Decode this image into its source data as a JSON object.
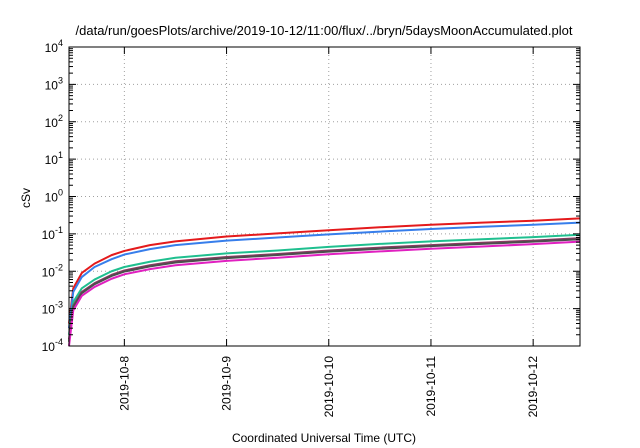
{
  "chart_data": {
    "type": "line",
    "title": "/data/run/goesPlots/archive/2019-10-12/11:00/flux/../bryn/5daysMoonAccumulated.plot",
    "xlabel": "Coordinated Universal Time (UTC)",
    "ylabel": "cSv",
    "yscale": "log",
    "ylim": [
      0.0001,
      10000
    ],
    "xlim": [
      "2019-10-07 11:00",
      "2019-10-12 11:00"
    ],
    "x_ticks": [
      "2019-10-8",
      "2019-10-9",
      "2019-10-10",
      "2019-10-11",
      "2019-10-12"
    ],
    "y_ticks": [
      {
        "base": "10",
        "exp": "-4"
      },
      {
        "base": "10",
        "exp": "-3"
      },
      {
        "base": "10",
        "exp": "-2"
      },
      {
        "base": "10",
        "exp": "-1"
      },
      {
        "base": "10",
        "exp": "0"
      },
      {
        "base": "10",
        "exp": "1"
      },
      {
        "base": "10",
        "exp": "2"
      },
      {
        "base": "10",
        "exp": "3"
      },
      {
        "base": "10",
        "exp": "4"
      }
    ],
    "grid": true,
    "x": [
      "2019-10-07 11:00",
      "2019-10-07 12:00",
      "2019-10-07 14:00",
      "2019-10-07 17:00",
      "2019-10-07 21:00",
      "2019-10-08 00:00",
      "2019-10-08 06:00",
      "2019-10-08 12:00",
      "2019-10-09 00:00",
      "2019-10-09 12:00",
      "2019-10-10 00:00",
      "2019-10-10 12:00",
      "2019-10-11 00:00",
      "2019-10-11 12:00",
      "2019-10-12 00:00",
      "2019-10-12 11:00"
    ],
    "series": [
      {
        "color": "#e41a1c",
        "values": [
          0.0004,
          0.0035,
          0.009,
          0.016,
          0.027,
          0.035,
          0.05,
          0.063,
          0.085,
          0.103,
          0.125,
          0.15,
          0.175,
          0.2,
          0.225,
          0.26
        ]
      },
      {
        "color": "#377eeb",
        "values": [
          0.0003,
          0.0028,
          0.007,
          0.013,
          0.021,
          0.028,
          0.039,
          0.05,
          0.066,
          0.08,
          0.097,
          0.115,
          0.135,
          0.155,
          0.175,
          0.2
        ]
      },
      {
        "color": "#1fbf8f",
        "values": [
          0.0002,
          0.0015,
          0.0035,
          0.006,
          0.01,
          0.013,
          0.018,
          0.023,
          0.03,
          0.036,
          0.045,
          0.054,
          0.063,
          0.072,
          0.082,
          0.095
        ]
      },
      {
        "color": "#8b3a62",
        "values": [
          0.00015,
          0.0012,
          0.0028,
          0.0048,
          0.008,
          0.0105,
          0.0145,
          0.0185,
          0.024,
          0.029,
          0.036,
          0.043,
          0.05,
          0.058,
          0.066,
          0.077
        ]
      },
      {
        "color": "#4d4d4d",
        "values": [
          0.00013,
          0.0011,
          0.0026,
          0.0045,
          0.0075,
          0.0098,
          0.0135,
          0.0172,
          0.0225,
          0.0272,
          0.0335,
          0.04,
          0.047,
          0.054,
          0.062,
          0.072
        ]
      },
      {
        "color": "#e020c0",
        "values": [
          0.0001,
          0.0009,
          0.0022,
          0.0038,
          0.0063,
          0.0083,
          0.0114,
          0.0145,
          0.019,
          0.023,
          0.0285,
          0.034,
          0.04,
          0.046,
          0.053,
          0.062
        ]
      }
    ]
  }
}
